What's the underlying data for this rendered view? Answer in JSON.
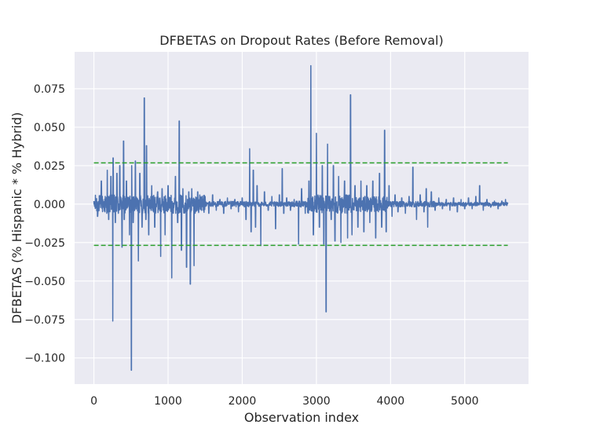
{
  "chart_data": {
    "type": "line",
    "title": "DFBETAS on Dropout Rates (Before Removal)",
    "xlabel": "Observation index",
    "ylabel": "DFBETAS (% Hispanic * % Hybrid)",
    "xlim": [
      -260,
      5860
    ],
    "ylim": [
      -0.117,
      0.099
    ],
    "x_ticks": [
      0,
      1000,
      2000,
      3000,
      4000,
      5000
    ],
    "x_tick_labels": [
      "0",
      "1000",
      "2000",
      "3000",
      "4000",
      "5000"
    ],
    "y_ticks": [
      0.075,
      0.05,
      0.025,
      0.0,
      -0.025,
      -0.05,
      -0.075,
      -0.1
    ],
    "y_tick_labels": [
      "0.075",
      "0.050",
      "0.025",
      "0.000",
      "−0.025",
      "−0.050",
      "−0.075",
      "−0.100"
    ],
    "grid": true,
    "background_color": "#eaeaf2",
    "series": [
      {
        "style": "solid",
        "color": "#4c72b0",
        "n_points": 5580,
        "x": [
          0,
          50,
          100,
          150,
          180,
          200,
          230,
          255,
          260,
          270,
          290,
          310,
          330,
          350,
          380,
          400,
          410,
          440,
          480,
          505,
          510,
          530,
          560,
          600,
          620,
          650,
          680,
          700,
          710,
          740,
          780,
          820,
          860,
          900,
          920,
          960,
          1000,
          1050,
          1100,
          1130,
          1150,
          1180,
          1200,
          1250,
          1280,
          1300,
          1320,
          1350,
          1400,
          1450,
          1500,
          1550,
          1600,
          1650,
          1700,
          1750,
          1800,
          1850,
          1900,
          1950,
          2000,
          2050,
          2100,
          2120,
          2150,
          2180,
          2200,
          2250,
          2300,
          2350,
          2400,
          2450,
          2500,
          2540,
          2560,
          2600,
          2650,
          2700,
          2760,
          2800,
          2850,
          2900,
          2925,
          2960,
          3000,
          3040,
          3080,
          3100,
          3130,
          3150,
          3200,
          3230,
          3250,
          3300,
          3330,
          3380,
          3420,
          3460,
          3480,
          3520,
          3560,
          3600,
          3640,
          3680,
          3720,
          3760,
          3800,
          3850,
          3880,
          3920,
          3940,
          3980,
          4020,
          4060,
          4100,
          4150,
          4200,
          4250,
          4300,
          4350,
          4400,
          4450,
          4480,
          4500,
          4550,
          4600,
          4650,
          4700,
          4750,
          4800,
          4850,
          4900,
          4950,
          5000,
          5050,
          5100,
          5150,
          5200,
          5250,
          5300,
          5350,
          5400,
          5450,
          5500,
          5550,
          5580
        ],
        "y": [
          0.002,
          -0.008,
          0.015,
          -0.005,
          0.022,
          -0.01,
          0.018,
          -0.076,
          0.03,
          -0.005,
          -0.012,
          0.02,
          -0.006,
          0.025,
          -0.028,
          0.041,
          -0.01,
          0.015,
          -0.02,
          -0.108,
          0.025,
          -0.012,
          0.028,
          -0.037,
          0.02,
          -0.015,
          0.069,
          -0.01,
          0.038,
          -0.02,
          0.012,
          -0.015,
          0.008,
          -0.034,
          0.01,
          -0.02,
          0.012,
          -0.048,
          0.018,
          -0.012,
          0.054,
          -0.03,
          0.01,
          -0.041,
          0.008,
          -0.052,
          0.01,
          -0.04,
          0.008,
          -0.004,
          0.005,
          -0.006,
          0.006,
          -0.004,
          0.003,
          -0.006,
          0.004,
          -0.003,
          0.003,
          -0.005,
          0.004,
          -0.01,
          0.036,
          -0.018,
          0.022,
          -0.015,
          0.012,
          -0.027,
          0.008,
          -0.004,
          0.005,
          -0.016,
          0.006,
          0.023,
          -0.006,
          0.004,
          -0.004,
          0.003,
          -0.026,
          0.01,
          -0.006,
          0.015,
          0.09,
          -0.02,
          0.046,
          -0.015,
          0.025,
          -0.026,
          -0.07,
          0.039,
          -0.01,
          0.025,
          -0.024,
          0.018,
          -0.025,
          0.015,
          -0.022,
          0.071,
          -0.02,
          0.012,
          -0.015,
          0.015,
          -0.018,
          0.012,
          -0.012,
          0.015,
          -0.022,
          0.02,
          -0.015,
          0.048,
          -0.018,
          0.012,
          -0.008,
          0.006,
          -0.005,
          0.004,
          -0.006,
          0.005,
          0.024,
          -0.01,
          0.006,
          -0.005,
          0.01,
          -0.015,
          0.008,
          -0.004,
          0.004,
          -0.003,
          0.003,
          -0.004,
          0.004,
          -0.005,
          0.003,
          -0.003,
          0.004,
          -0.003,
          0.005,
          0.012,
          -0.004,
          0.003,
          -0.002,
          0.002,
          -0.003,
          0.002,
          0.003,
          0.001
        ],
        "line_width": 1.5
      },
      {
        "style": "dashed",
        "color": "#2ca02c",
        "x": [
          0,
          5580
        ],
        "y": [
          0.0268,
          0.0268
        ],
        "line_width": 1.5
      },
      {
        "style": "dashed",
        "color": "#2ca02c",
        "x": [
          0,
          5580
        ],
        "y": [
          -0.0268,
          -0.0268
        ],
        "line_width": 1.5
      }
    ],
    "legend": null
  }
}
